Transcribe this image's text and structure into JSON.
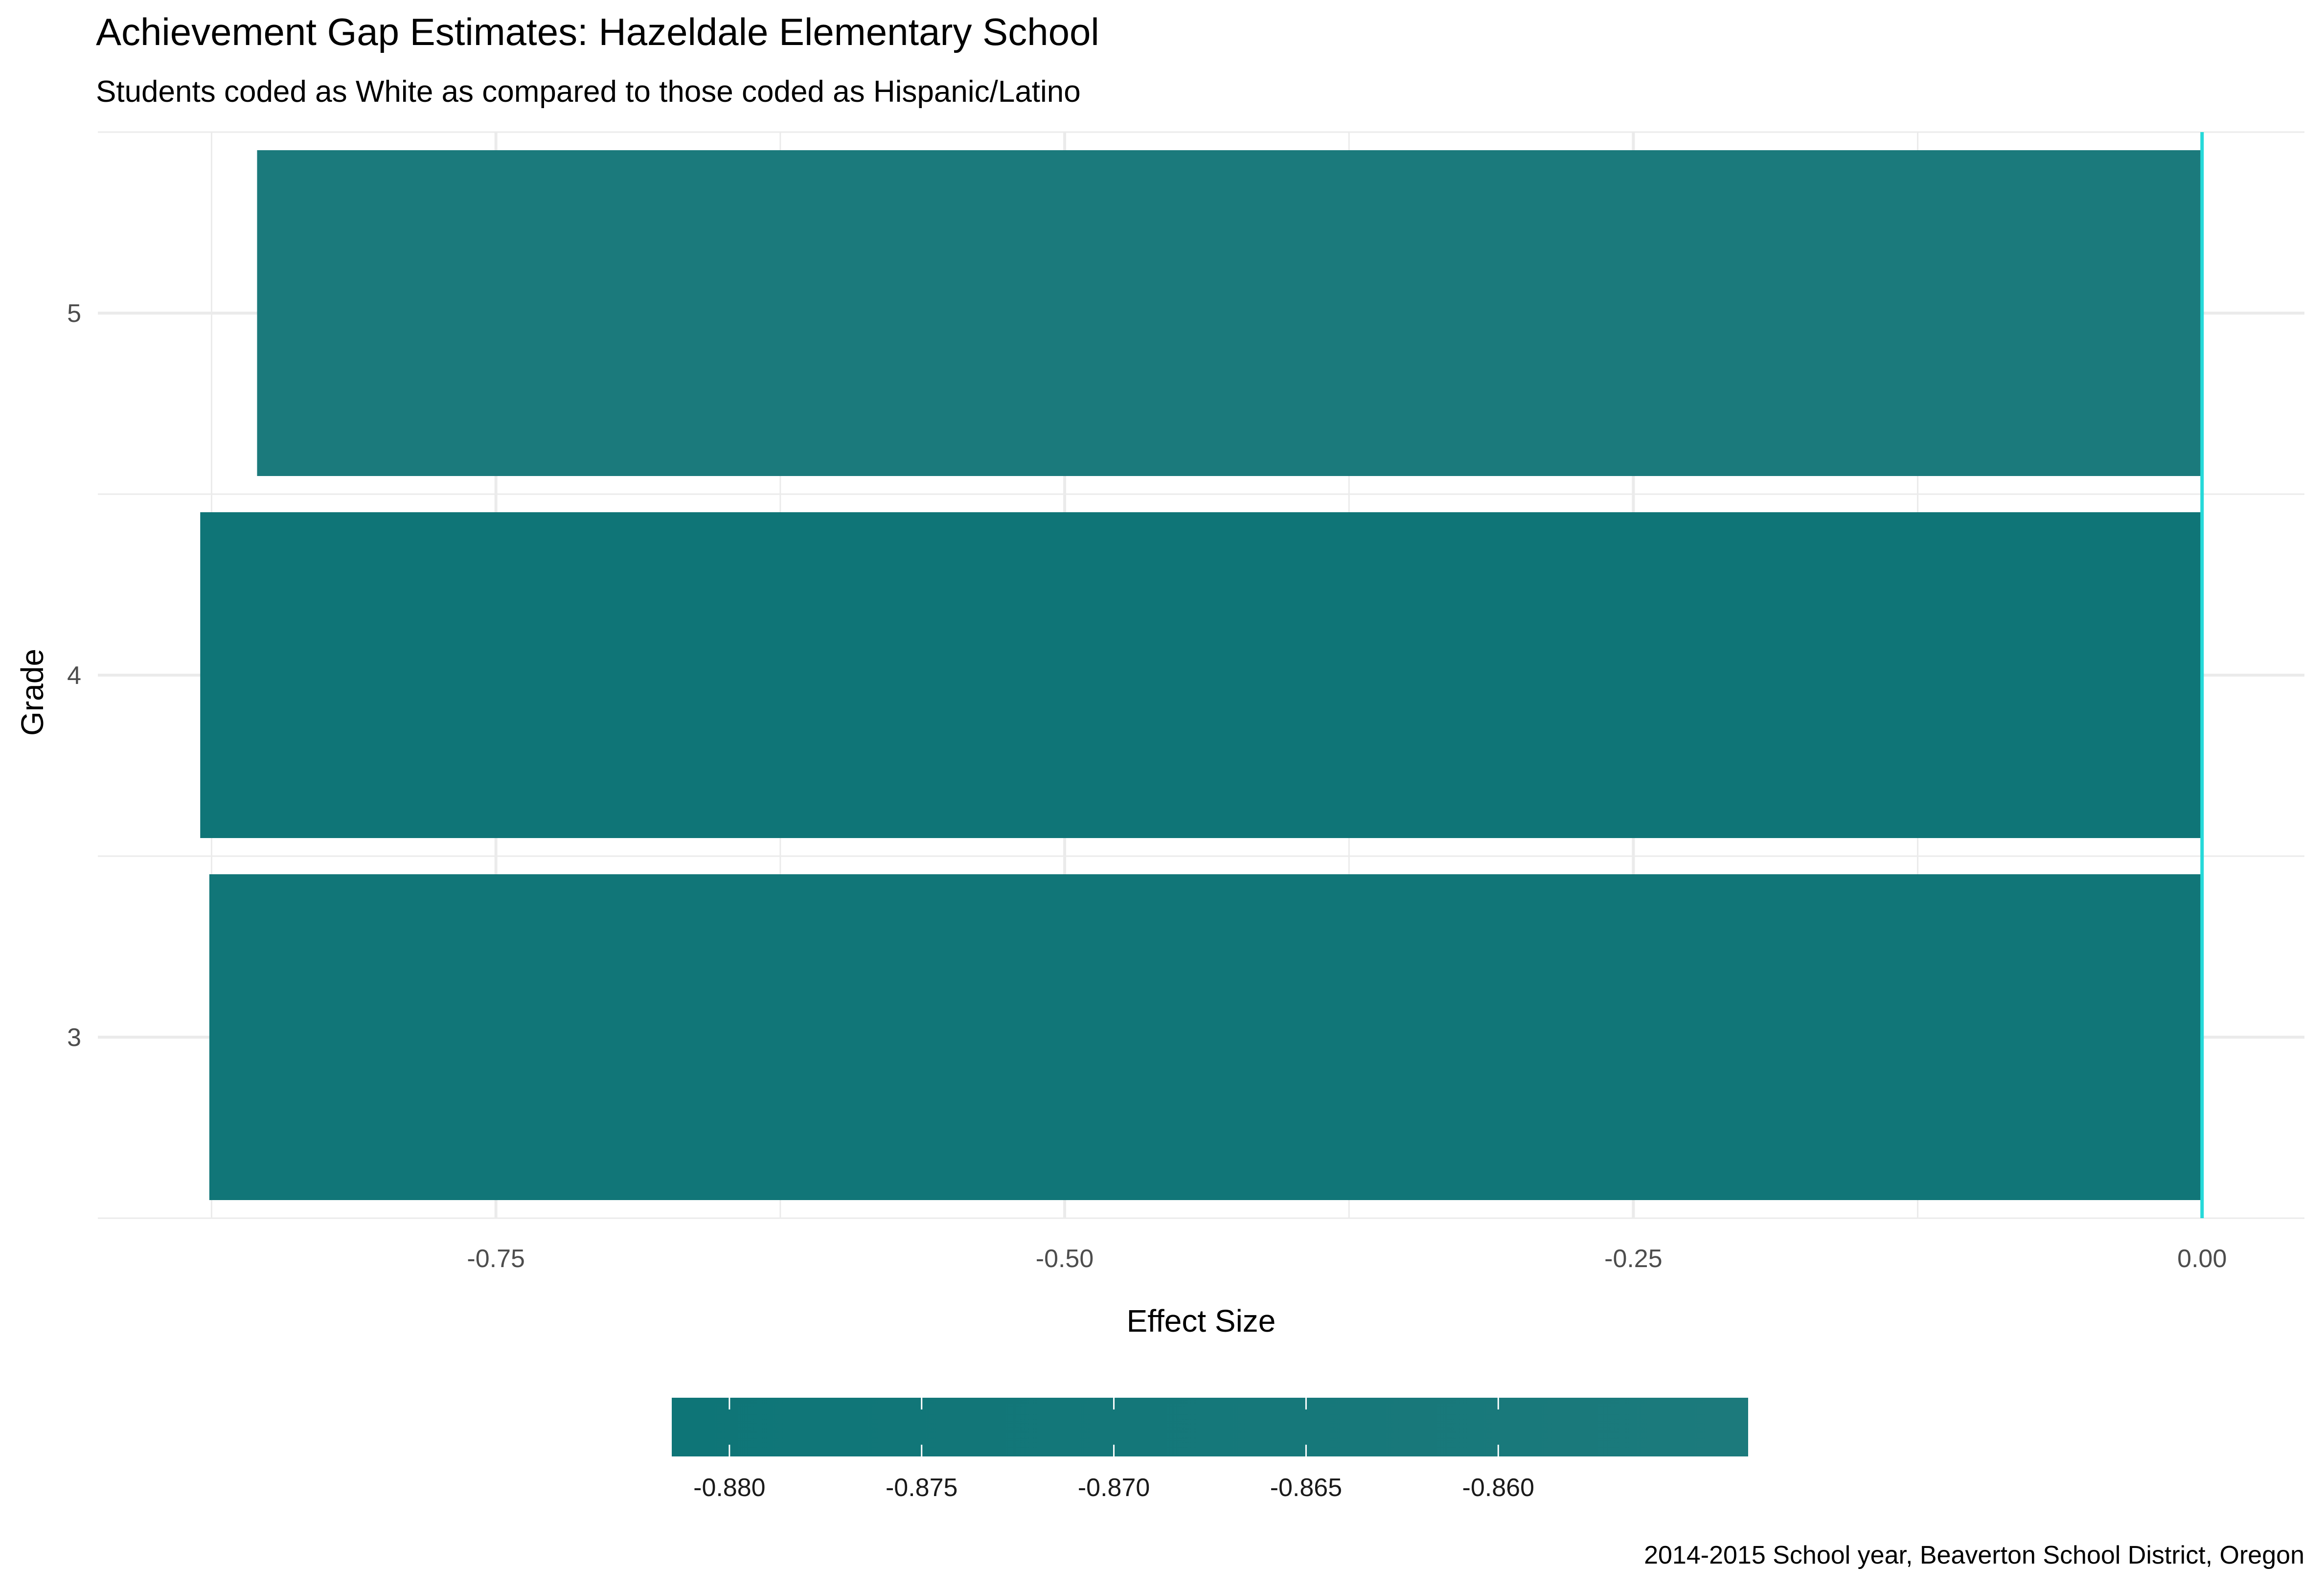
{
  "chart_data": {
    "type": "bar",
    "orientation": "horizontal",
    "title": "Achievement Gap Estimates: Hazeldale Elementary School",
    "subtitle": "Students coded as White as compared to those coded as Hispanic/Latino",
    "xlabel": "Effect Size",
    "ylabel": "Grade",
    "caption": "2014-2015 School year, Beaverton School District, Oregon",
    "categories": [
      "3",
      "4",
      "5"
    ],
    "values": [
      -0.876,
      -0.88,
      -0.855
    ],
    "xlim": [
      -0.925,
      0.045
    ],
    "x_ticks": [
      -0.75,
      -0.5,
      -0.25,
      0.0
    ],
    "x_tick_labels": [
      "-0.75",
      "-0.50",
      "-0.25",
      "0.00"
    ],
    "reference_line": {
      "x": 0,
      "color": "#26d9d9"
    },
    "grid": true,
    "legend": {
      "type": "colorbar",
      "position": "bottom",
      "range": [
        -0.8815,
        -0.8535
      ],
      "ticks": [
        -0.88,
        -0.875,
        -0.87,
        -0.865,
        -0.86
      ],
      "tick_labels": [
        "-0.880",
        "-0.875",
        "-0.870",
        "-0.865",
        "-0.860"
      ],
      "color_low": "#0e7577",
      "color_high": "#1c7a7c"
    }
  }
}
